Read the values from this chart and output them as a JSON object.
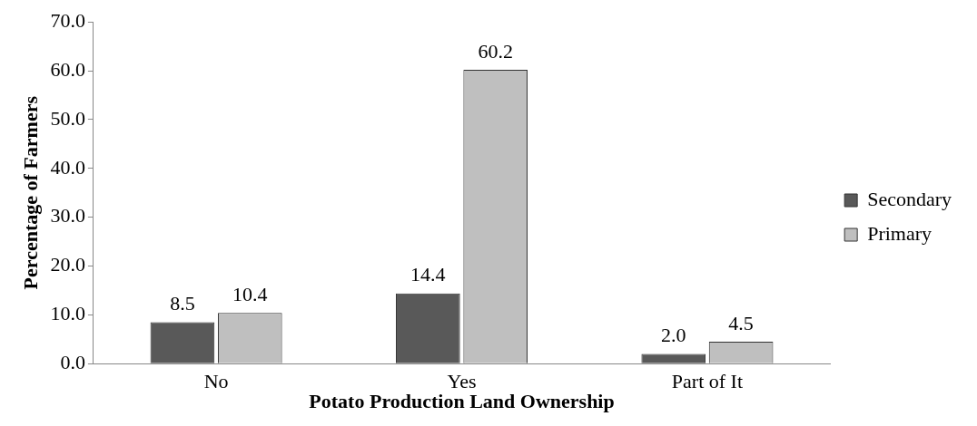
{
  "chart_data": {
    "type": "bar",
    "xlabel": "Potato Production Land Ownership",
    "ylabel": "Percentage of Farmers",
    "categories": [
      "No",
      "Yes",
      "Part of It"
    ],
    "series": [
      {
        "name": "Secondary",
        "color": "#595959",
        "values": [
          8.5,
          14.4,
          2.0
        ],
        "value_labels": [
          "8.5",
          "14.4",
          "2.0"
        ]
      },
      {
        "name": "Primary",
        "color": "#bfbfbf",
        "values": [
          10.4,
          60.2,
          4.5
        ],
        "value_labels": [
          "10.4",
          "60.2",
          "4.5"
        ]
      }
    ],
    "ylim": [
      0,
      70
    ],
    "yticks": [
      {
        "value": 0,
        "label": "0.0"
      },
      {
        "value": 10,
        "label": "10.0"
      },
      {
        "value": 20,
        "label": "20.0"
      },
      {
        "value": 30,
        "label": "30.0"
      },
      {
        "value": 40,
        "label": "40.0"
      },
      {
        "value": 50,
        "label": "50.0"
      },
      {
        "value": 60,
        "label": "60.0"
      },
      {
        "value": 70,
        "label": "70.0"
      }
    ],
    "grid": false,
    "legend": "right"
  }
}
